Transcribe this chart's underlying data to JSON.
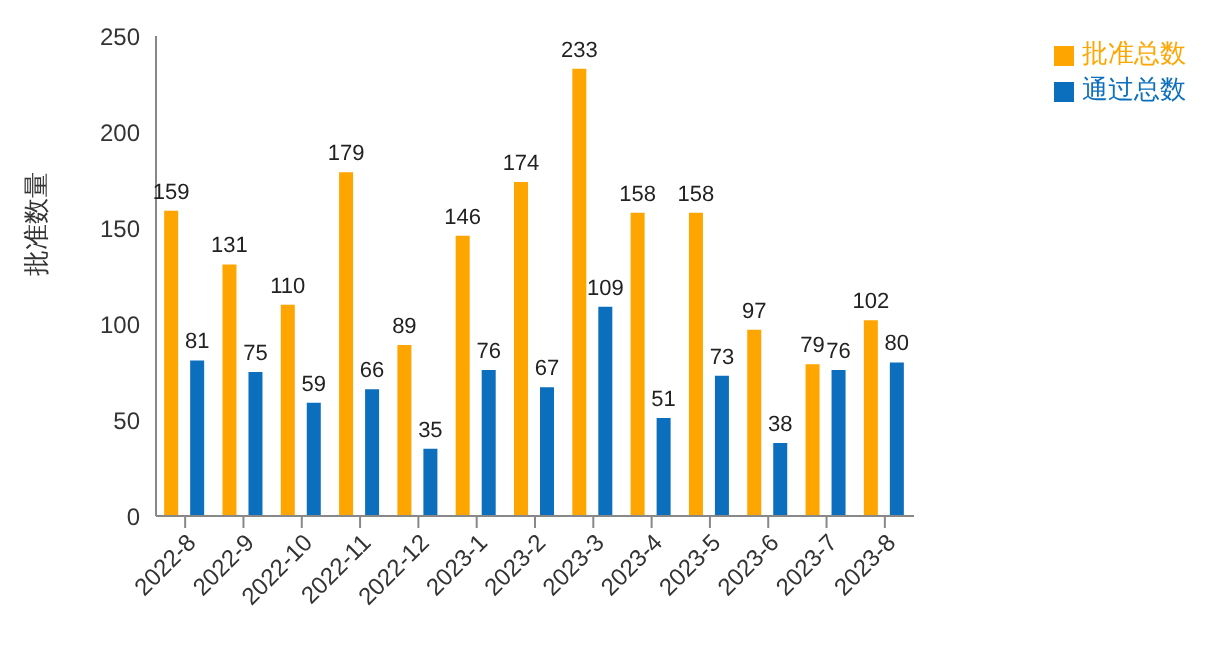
{
  "chart_data": {
    "type": "bar",
    "ylabel": "批准数量",
    "categories": [
      "2022-8",
      "2022-9",
      "2022-10",
      "2022-11",
      "2022-12",
      "2023-1",
      "2023-2",
      "2023-3",
      "2023-4",
      "2023-5",
      "2023-6",
      "2023-7",
      "2023-8"
    ],
    "series": [
      {
        "name": "批准总数",
        "color": "#ffa500",
        "values": [
          159,
          131,
          110,
          179,
          89,
          146,
          174,
          233,
          158,
          158,
          97,
          79,
          102
        ]
      },
      {
        "name": "通过总数",
        "color": "#0c6fbd",
        "values": [
          81,
          75,
          59,
          66,
          35,
          76,
          67,
          109,
          51,
          73,
          38,
          76,
          80
        ]
      }
    ],
    "ylim": [
      0,
      250
    ],
    "yticks": [
      0,
      50,
      100,
      150,
      200,
      250
    ],
    "grid": false,
    "legend": "top right",
    "data_labels": true
  }
}
